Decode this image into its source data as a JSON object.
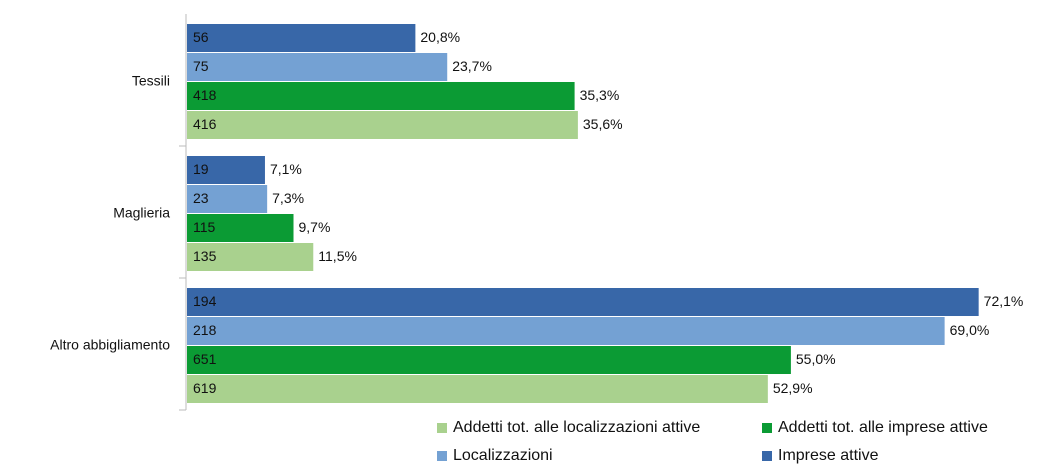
{
  "chart_data": {
    "type": "bar",
    "orientation": "horizontal",
    "categories": [
      "Tessili",
      "Maglieria",
      "Altro abbigliamento"
    ],
    "series": [
      {
        "name": "Imprese attive",
        "color": "#3867a8",
        "values": [
          20.8,
          7.1,
          72.1
        ],
        "value_labels": [
          "20,8%",
          "7,1%",
          "72,1%"
        ],
        "counts": [
          56,
          19,
          194
        ]
      },
      {
        "name": "Localizzazioni",
        "color": "#74a1d3",
        "values": [
          23.7,
          7.3,
          69.0
        ],
        "value_labels": [
          "23,7%",
          "7,3%",
          "69,0%"
        ],
        "counts": [
          75,
          23,
          218
        ]
      },
      {
        "name": "Addetti tot. alle imprese attive",
        "color": "#0b9b34",
        "values": [
          35.3,
          9.7,
          55.0
        ],
        "value_labels": [
          "35,3%",
          "9,7%",
          "55,0%"
        ],
        "counts": [
          418,
          115,
          651
        ]
      },
      {
        "name": "Addetti tot. alle localizzazioni attive",
        "color": "#a9d18e",
        "values": [
          35.6,
          11.5,
          52.9
        ],
        "value_labels": [
          "35,6%",
          "11,5%",
          "52,9%"
        ],
        "counts": [
          416,
          135,
          619
        ]
      }
    ]
  }
}
